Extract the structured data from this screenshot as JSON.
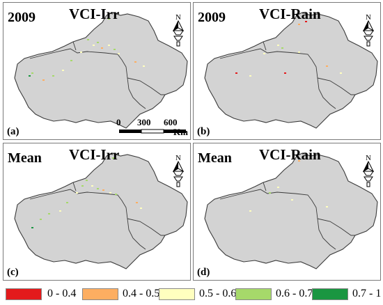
{
  "panels": [
    {
      "year": "2009",
      "index": "VCI-Irr",
      "tag": "(a)",
      "scale": true,
      "north": true,
      "dots": "irr_a"
    },
    {
      "year": "2009",
      "index": "VCI-Rain",
      "tag": "(b)",
      "scale": false,
      "north": true,
      "dots": "rain_b"
    },
    {
      "year": "Mean",
      "index": "VCI-Irr",
      "tag": "(c)",
      "scale": false,
      "north": true,
      "dots": "irr_c"
    },
    {
      "year": "Mean",
      "index": "VCI-Rain",
      "tag": "(d)",
      "scale": false,
      "north": true,
      "dots": "rain_d"
    }
  ],
  "north_label": "N",
  "scale": {
    "ticks": [
      "0",
      "300",
      "600"
    ],
    "unit": "Km"
  },
  "legend": [
    {
      "label": "0 - 0.4",
      "color": "#e31a1c"
    },
    {
      "label": "0.4 - 0.5",
      "color": "#fdae61"
    },
    {
      "label": "0.5 - 0.6",
      "color": "#ffffbf"
    },
    {
      "label": "0.6 - 0.7",
      "color": "#a6d96a"
    },
    {
      "label": "0.7 - 1",
      "color": "#1a9641"
    }
  ],
  "colors": {
    "land": "#d3d3d3",
    "boundary": "#3a3a3a"
  }
}
